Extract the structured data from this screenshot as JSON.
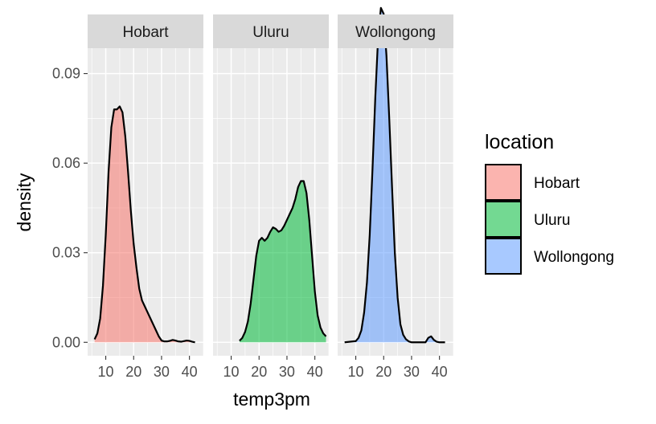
{
  "chart_data": {
    "type": "area",
    "chart_subtype": "faceted density",
    "xlabel": "temp3pm",
    "ylabel": "density",
    "xlim": [
      3.5,
      45
    ],
    "ylim": [
      -0.0045,
      0.0985
    ],
    "x_ticks": [
      10,
      20,
      30,
      40
    ],
    "x_tick_labels": [
      "10",
      "20",
      "30",
      "40"
    ],
    "y_ticks": [
      0.0,
      0.03,
      0.06,
      0.09
    ],
    "y_tick_labels": [
      "0.00",
      "0.03",
      "0.06",
      "0.09"
    ],
    "grid": true,
    "legend": {
      "title": "location",
      "position": "right",
      "entries": [
        "Hobart",
        "Uluru",
        "Wollongong"
      ]
    },
    "fill_colors": [
      "#F8766D",
      "#00BA38",
      "#619CFF"
    ],
    "fill_alpha": 0.55,
    "series": [
      {
        "name": "Hobart",
        "facet": "Hobart",
        "x": [
          6,
          7,
          8,
          9,
          10,
          11,
          12,
          13,
          14,
          15,
          16,
          17,
          18,
          19,
          20,
          21,
          22,
          23,
          24,
          25,
          26,
          27,
          28,
          29,
          30,
          31,
          32,
          33,
          34,
          35,
          36,
          37,
          38,
          39,
          40,
          41,
          42
        ],
        "y": [
          0.001,
          0.003,
          0.008,
          0.019,
          0.036,
          0.057,
          0.072,
          0.078,
          0.078,
          0.079,
          0.077,
          0.069,
          0.057,
          0.044,
          0.033,
          0.025,
          0.018,
          0.014,
          0.012,
          0.01,
          0.008,
          0.006,
          0.004,
          0.002,
          0.0006,
          0.0003,
          0.0003,
          0.0005,
          0.0008,
          0.0006,
          0.0003,
          0.0002,
          0.0004,
          0.0006,
          0.0005,
          0.0002,
          0.0
        ]
      },
      {
        "name": "Uluru",
        "facet": "Uluru",
        "x": [
          13,
          14,
          15,
          16,
          17,
          18,
          19,
          20,
          21,
          22,
          23,
          24,
          25,
          26,
          27,
          28,
          29,
          30,
          31,
          32,
          33,
          34,
          35,
          36,
          37,
          38,
          39,
          40,
          41,
          42,
          43,
          44
        ],
        "y": [
          0.0005,
          0.0015,
          0.0035,
          0.007,
          0.013,
          0.021,
          0.029,
          0.034,
          0.035,
          0.034,
          0.035,
          0.037,
          0.0385,
          0.038,
          0.037,
          0.0375,
          0.039,
          0.041,
          0.043,
          0.045,
          0.048,
          0.052,
          0.054,
          0.054,
          0.05,
          0.041,
          0.029,
          0.017,
          0.009,
          0.005,
          0.003,
          0.002
        ]
      },
      {
        "name": "Wollongong",
        "facet": "Wollongong",
        "x": [
          6,
          8,
          10,
          11,
          12,
          13,
          14,
          15,
          16,
          17,
          18,
          19,
          20,
          21,
          22,
          23,
          24,
          25,
          26,
          27,
          28,
          29,
          30,
          31,
          32,
          33,
          34,
          35,
          36,
          37,
          38,
          39,
          40,
          41,
          42
        ],
        "y": [
          0.0,
          0.0002,
          0.0004,
          0.0015,
          0.004,
          0.01,
          0.02,
          0.036,
          0.058,
          0.082,
          0.102,
          0.112,
          0.11,
          0.096,
          0.075,
          0.052,
          0.03,
          0.015,
          0.006,
          0.0025,
          0.001,
          0.0003,
          0.0,
          0.0,
          0.0,
          0.0,
          0.0,
          0.0,
          0.0015,
          0.002,
          0.0008,
          0.0002,
          0.0,
          0.0,
          0.0
        ]
      }
    ]
  }
}
